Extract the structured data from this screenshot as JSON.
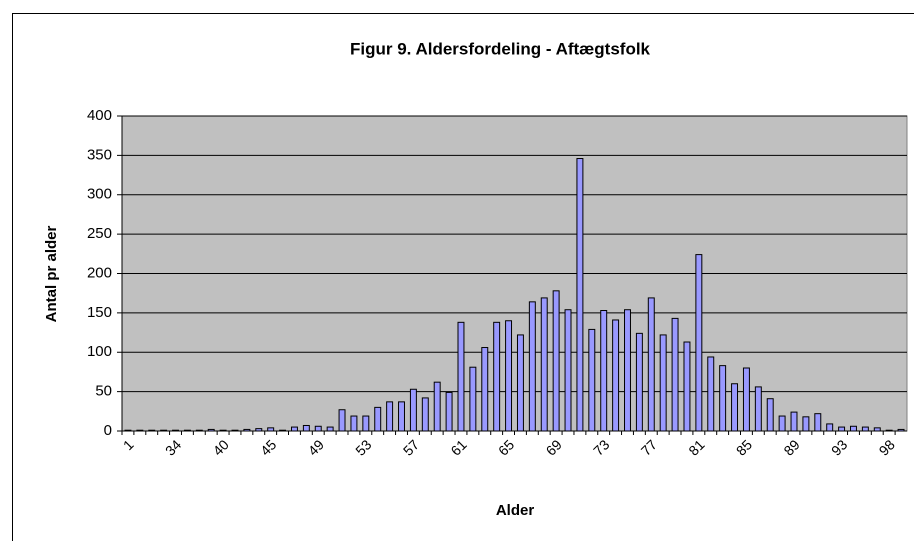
{
  "chart_data": {
    "type": "bar",
    "title": "Figur 9. Aldersfordeling - Aftægtsfolk",
    "x_label": "Alder",
    "y_label": "Antal pr alder",
    "categories": [
      "1",
      null,
      null,
      null,
      "34",
      null,
      null,
      null,
      "40",
      null,
      null,
      null,
      "45",
      null,
      null,
      null,
      "49",
      null,
      null,
      null,
      "53",
      null,
      null,
      null,
      "57",
      null,
      null,
      null,
      "61",
      null,
      null,
      null,
      "65",
      null,
      null,
      null,
      "69",
      null,
      null,
      null,
      "73",
      null,
      null,
      null,
      "77",
      null,
      null,
      null,
      "81",
      null,
      null,
      null,
      "85",
      null,
      null,
      null,
      "89",
      null,
      null,
      null,
      "93",
      null,
      null,
      null,
      "98",
      null
    ],
    "values": [
      1,
      1,
      1,
      1,
      1,
      1,
      1,
      2,
      1,
      1,
      2,
      3,
      4,
      1,
      5,
      7,
      6,
      5,
      27,
      19,
      19,
      30,
      37,
      37,
      53,
      42,
      62,
      49,
      138,
      81,
      106,
      138,
      140,
      122,
      164,
      169,
      178,
      154,
      346,
      129,
      153,
      141,
      154,
      124,
      169,
      122,
      143,
      113,
      224,
      94,
      83,
      60,
      80,
      56,
      41,
      19,
      24,
      18,
      22,
      9,
      5,
      6,
      5,
      4,
      1,
      2
    ],
    "color": "#9999ff",
    "plot_background": "#c0c0c0",
    "ylim": [
      0,
      400
    ],
    "yticks": [
      0,
      50,
      100,
      150,
      200,
      250,
      300,
      350,
      400
    ],
    "grid": true
  }
}
